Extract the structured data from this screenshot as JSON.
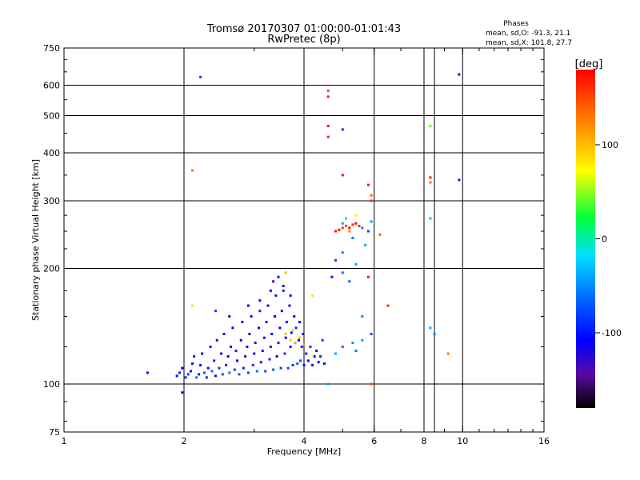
{
  "chart_data": {
    "type": "scatter",
    "title": "Tromsø 20170307 01:00:00-01:01:43",
    "subtitle": "RwPretec (8p)",
    "stats": {
      "heading": "Phases",
      "line1": "mean, sd,O: -91.3, 21.1",
      "line2": "mean, sd,X: 101.8, 27.7"
    },
    "xlabel": "Frequency [MHz]",
    "ylabel": "Stationary phase Virtual Height [km]",
    "x_scale": "log2",
    "y_scale": "log",
    "xlim": [
      1,
      16
    ],
    "ylim": [
      75,
      750
    ],
    "x_ticks": [
      {
        "v": 1,
        "label": "1"
      },
      {
        "v": 2,
        "label": "2"
      },
      {
        "v": 4,
        "label": "4"
      },
      {
        "v": 6,
        "label": "6"
      },
      {
        "v": 8,
        "label": "8"
      },
      {
        "v": 10,
        "label": "10"
      },
      {
        "v": 16,
        "label": "16"
      }
    ],
    "y_ticks": [
      {
        "v": 75,
        "label": "75"
      },
      {
        "v": 100,
        "label": "100"
      },
      {
        "v": 200,
        "label": "200"
      },
      {
        "v": 300,
        "label": "300"
      },
      {
        "v": 400,
        "label": "400"
      },
      {
        "v": 500,
        "label": "500"
      },
      {
        "v": 600,
        "label": "600"
      },
      {
        "v": 750,
        "label": "750"
      }
    ],
    "grid": true,
    "colorbar": {
      "label": "[deg]",
      "range": [
        -180,
        180
      ],
      "ticks": [
        {
          "v": 100,
          "label": "100"
        },
        {
          "v": 0,
          "label": "0"
        },
        {
          "v": -100,
          "label": "-100"
        }
      ]
    },
    "point_colors": {
      "blue": "#1f2dff",
      "darkblue": "#2a12b8",
      "purple": "#6a0aa8",
      "cyan": "#10d4e8",
      "lightblue": "#1a8cff",
      "yellow": "#f4f400",
      "orange": "#ff7a00",
      "red": "#ff1a00",
      "green": "#20d020"
    },
    "points": [
      [
        1.62,
        107,
        -100
      ],
      [
        1.92,
        105,
        -120
      ],
      [
        1.95,
        107,
        -95
      ],
      [
        1.98,
        110,
        -110
      ],
      [
        2.02,
        104,
        -90
      ],
      [
        2.05,
        106,
        -80
      ],
      [
        2.08,
        108,
        -130
      ],
      [
        2.1,
        113,
        -100
      ],
      [
        2.12,
        118,
        -90
      ],
      [
        2.15,
        104,
        -60
      ],
      [
        2.18,
        106,
        -100
      ],
      [
        2.2,
        112,
        -120
      ],
      [
        2.22,
        120,
        -105
      ],
      [
        2.25,
        107,
        -70
      ],
      [
        2.28,
        104,
        -95
      ],
      [
        2.3,
        110,
        -110
      ],
      [
        2.33,
        125,
        -100
      ],
      [
        2.35,
        108,
        -65
      ],
      [
        2.38,
        115,
        -95
      ],
      [
        2.4,
        105,
        -120
      ],
      [
        2.42,
        130,
        -100
      ],
      [
        2.45,
        110,
        -85
      ],
      [
        2.48,
        120,
        -110
      ],
      [
        2.5,
        106,
        -75
      ],
      [
        2.52,
        135,
        -100
      ],
      [
        2.55,
        112,
        -90
      ],
      [
        2.58,
        118,
        -120
      ],
      [
        2.6,
        107,
        -60
      ],
      [
        2.62,
        125,
        -100
      ],
      [
        2.65,
        140,
        -110
      ],
      [
        2.68,
        109,
        -80
      ],
      [
        2.7,
        122,
        -95
      ],
      [
        2.72,
        115,
        -115
      ],
      [
        2.75,
        106,
        -70
      ],
      [
        2.78,
        130,
        -105
      ],
      [
        2.8,
        145,
        -100
      ],
      [
        2.82,
        110,
        -90
      ],
      [
        2.85,
        118,
        -125
      ],
      [
        2.88,
        125,
        -100
      ],
      [
        2.9,
        107,
        -75
      ],
      [
        2.92,
        135,
        -110
      ],
      [
        2.95,
        150,
        -100
      ],
      [
        2.98,
        112,
        -85
      ],
      [
        3.0,
        120,
        -120
      ],
      [
        3.02,
        128,
        -100
      ],
      [
        3.05,
        108,
        -60
      ],
      [
        3.08,
        140,
        -105
      ],
      [
        3.1,
        155,
        -95
      ],
      [
        3.12,
        114,
        -130
      ],
      [
        3.15,
        122,
        -100
      ],
      [
        3.18,
        132,
        -110
      ],
      [
        3.2,
        108,
        -80
      ],
      [
        3.22,
        145,
        -100
      ],
      [
        3.25,
        160,
        -115
      ],
      [
        3.28,
        116,
        -90
      ],
      [
        3.3,
        125,
        -130
      ],
      [
        3.32,
        135,
        -100
      ],
      [
        3.35,
        109,
        -70
      ],
      [
        3.38,
        150,
        -105
      ],
      [
        3.4,
        170,
        -100
      ],
      [
        3.42,
        118,
        -120
      ],
      [
        3.45,
        128,
        -95
      ],
      [
        3.48,
        140,
        -110
      ],
      [
        3.5,
        110,
        -80
      ],
      [
        3.52,
        155,
        -100
      ],
      [
        3.55,
        180,
        -120
      ],
      [
        3.58,
        120,
        -90
      ],
      [
        3.6,
        132,
        -105
      ],
      [
        3.62,
        145,
        -100
      ],
      [
        3.65,
        110,
        -75
      ],
      [
        3.68,
        160,
        -110
      ],
      [
        3.7,
        125,
        -95
      ],
      [
        3.72,
        136,
        -100
      ],
      [
        3.75,
        112,
        -85
      ],
      [
        3.78,
        150,
        -115
      ],
      [
        3.8,
        128,
        -100
      ],
      [
        3.82,
        140,
        -90
      ],
      [
        3.85,
        113,
        -70
      ],
      [
        3.88,
        130,
        -110
      ],
      [
        3.9,
        145,
        -100
      ],
      [
        3.92,
        115,
        -80
      ],
      [
        3.95,
        125,
        -95
      ],
      [
        3.98,
        135,
        -105
      ],
      [
        4.0,
        112,
        -100
      ],
      [
        4.05,
        120,
        -90
      ],
      [
        4.1,
        115,
        -110
      ],
      [
        4.15,
        125,
        -85
      ],
      [
        4.2,
        112,
        -100
      ],
      [
        4.25,
        118,
        -95
      ],
      [
        4.3,
        122,
        -110
      ],
      [
        4.35,
        114,
        -100
      ],
      [
        4.4,
        118,
        -90
      ],
      [
        4.45,
        130,
        -80
      ],
      [
        4.5,
        113,
        -100
      ],
      [
        2.4,
        155,
        -80
      ],
      [
        2.6,
        150,
        -120
      ],
      [
        2.9,
        160,
        -110
      ],
      [
        3.1,
        165,
        -100
      ],
      [
        3.3,
        175,
        -105
      ],
      [
        3.45,
        190,
        -110
      ],
      [
        3.55,
        175,
        -95
      ],
      [
        3.7,
        170,
        -100
      ],
      [
        3.35,
        185,
        -130
      ],
      [
        3.6,
        135,
        100
      ],
      [
        3.7,
        130,
        95
      ],
      [
        3.8,
        128,
        105
      ],
      [
        3.9,
        132,
        100
      ],
      [
        4.0,
        127,
        110
      ],
      [
        3.75,
        138,
        90
      ],
      [
        2.1,
        160,
        60
      ],
      [
        3.6,
        195,
        100
      ],
      [
        4.2,
        170,
        60
      ],
      [
        4.6,
        580,
        150
      ],
      [
        4.6,
        560,
        170
      ],
      [
        4.6,
        470,
        175
      ],
      [
        4.6,
        440,
        170
      ],
      [
        5.0,
        460,
        -90
      ],
      [
        5.0,
        350,
        175
      ],
      [
        5.8,
        330,
        170
      ],
      [
        5.9,
        310,
        140
      ],
      [
        5.9,
        300,
        160
      ],
      [
        4.8,
        250,
        170
      ],
      [
        4.9,
        252,
        175
      ],
      [
        5.0,
        255,
        160
      ],
      [
        5.1,
        258,
        150
      ],
      [
        5.2,
        255,
        170
      ],
      [
        5.3,
        260,
        165
      ],
      [
        5.4,
        262,
        175
      ],
      [
        5.5,
        258,
        160
      ],
      [
        5.2,
        250,
        120
      ],
      [
        5.1,
        270,
        20
      ],
      [
        5.0,
        262,
        -40
      ],
      [
        5.4,
        275,
        80
      ],
      [
        5.6,
        255,
        -60
      ],
      [
        5.8,
        250,
        -80
      ],
      [
        5.9,
        265,
        -40
      ],
      [
        5.3,
        240,
        -60
      ],
      [
        5.0,
        220,
        -50
      ],
      [
        4.8,
        210,
        -80
      ],
      [
        5.0,
        195,
        -60
      ],
      [
        4.7,
        190,
        -100
      ],
      [
        5.4,
        205,
        -40
      ],
      [
        5.2,
        185,
        -70
      ],
      [
        5.8,
        190,
        170
      ],
      [
        5.6,
        150,
        -50
      ],
      [
        6.5,
        160,
        165
      ],
      [
        6.2,
        245,
        140
      ],
      [
        5.7,
        230,
        -40
      ],
      [
        4.8,
        120,
        -40
      ],
      [
        5.0,
        125,
        -60
      ],
      [
        5.3,
        128,
        -50
      ],
      [
        5.6,
        130,
        -40
      ],
      [
        5.9,
        135,
        -80
      ],
      [
        5.4,
        122,
        -60
      ],
      [
        4.6,
        100,
        -40
      ],
      [
        5.9,
        100,
        150
      ],
      [
        8.3,
        470,
        40
      ],
      [
        8.3,
        345,
        170
      ],
      [
        8.3,
        335,
        130
      ],
      [
        8.3,
        270,
        -30
      ],
      [
        8.3,
        140,
        -40
      ],
      [
        8.5,
        135,
        -50
      ],
      [
        9.2,
        120,
        130
      ],
      [
        9.8,
        640,
        -130
      ],
      [
        9.8,
        340,
        -120
      ],
      [
        2.2,
        630,
        -80
      ],
      [
        2.1,
        360,
        130
      ],
      [
        1.98,
        95,
        -100
      ]
    ]
  }
}
